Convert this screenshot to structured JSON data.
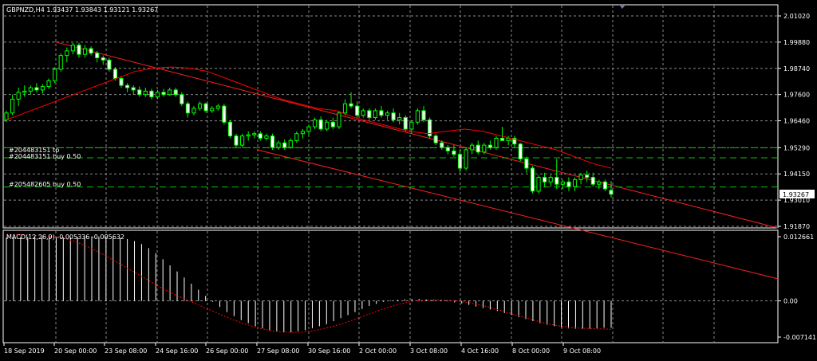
{
  "header": {
    "symbol_info": "GBPNZD,H4  1.93437 1.93843 1.93121 1.93267"
  },
  "macd": {
    "label": "MACD(12,26,9) -0.005336 -0.005632"
  },
  "orders": [
    {
      "label": "#204483151 tp"
    },
    {
      "label": "#204483151 buy 0.50"
    },
    {
      "label": "#205482605 buy 0.50"
    }
  ],
  "colors": {
    "background": "#000000",
    "grid": "#8a8a8a",
    "axis": "#ffffff",
    "candle_up_body": "#000000",
    "candle_up_border": "#00ff00",
    "candle_down_body": "#ffffff",
    "candle_down_border": "#00ff00",
    "wick": "#00ff00",
    "ma_line": "#ff0000",
    "trendline": "#ff2020",
    "order_line": "#00c800",
    "macd_hist": "#ffffff",
    "macd_signal": "#ff0000",
    "current_price_box": "#ffffff"
  },
  "chart_data": [
    {
      "type": "candlestick",
      "symbol": "GBPNZD",
      "timeframe": "H4",
      "ohlc_header": {
        "open": 1.93437,
        "high": 1.93843,
        "low": 1.93121,
        "close": 1.93267
      },
      "current_price": "1.93267",
      "ylim": [
        1.9187,
        2.0102
      ],
      "y_ticks": [
        "2.01020",
        "1.99880",
        "1.98740",
        "1.97600",
        "1.96460",
        "1.95290",
        "1.94150",
        "1.93010",
        "1.91870"
      ],
      "x_ticks": [
        "18 Sep 2019",
        "20 Sep 00:00",
        "23 Sep 08:00",
        "24 Sep 16:00",
        "26 Sep 00:00",
        "27 Sep 08:00",
        "30 Sep 16:00",
        "2 Oct 00:00",
        "3 Oct 08:00",
        "4 Oct 16:00",
        "8 Oct 00:00",
        "9 Oct 08:00"
      ],
      "candles": [
        [
          1.965,
          1.969,
          1.964,
          1.968
        ],
        [
          1.968,
          1.976,
          1.967,
          1.974
        ],
        [
          1.974,
          1.979,
          1.971,
          1.977
        ],
        [
          1.977,
          1.98,
          1.975,
          1.9775
        ],
        [
          1.9775,
          1.98,
          1.976,
          1.979
        ],
        [
          1.979,
          1.981,
          1.977,
          1.978
        ],
        [
          1.978,
          1.9805,
          1.9765,
          1.9795
        ],
        [
          1.9795,
          1.983,
          1.9785,
          1.982
        ],
        [
          1.982,
          1.988,
          1.981,
          1.987
        ],
        [
          1.987,
          1.994,
          1.986,
          1.993
        ],
        [
          1.993,
          1.9965,
          1.99,
          1.995
        ],
        [
          1.995,
          1.9985,
          1.9935,
          1.9975
        ],
        [
          1.9975,
          1.9985,
          1.992,
          1.9935
        ],
        [
          1.9935,
          1.9975,
          1.992,
          1.996
        ],
        [
          1.996,
          1.997,
          1.993,
          1.994
        ],
        [
          1.994,
          1.995,
          1.99,
          1.992
        ],
        [
          1.992,
          1.993,
          1.989,
          1.991
        ],
        [
          1.991,
          1.992,
          1.986,
          1.987
        ],
        [
          1.987,
          1.988,
          1.982,
          1.983
        ],
        [
          1.983,
          1.984,
          1.979,
          1.98
        ],
        [
          1.98,
          1.981,
          1.977,
          1.979
        ],
        [
          1.979,
          1.98,
          1.976,
          1.978
        ],
        [
          1.978,
          1.9795,
          1.975,
          1.976
        ],
        [
          1.976,
          1.979,
          1.975,
          1.9775
        ],
        [
          1.9775,
          1.9785,
          1.974,
          1.975
        ],
        [
          1.975,
          1.978,
          1.974,
          1.977
        ],
        [
          1.977,
          1.9785,
          1.975,
          1.976
        ],
        [
          1.976,
          1.979,
          1.9755,
          1.978
        ],
        [
          1.978,
          1.979,
          1.975,
          1.976
        ],
        [
          1.976,
          1.977,
          1.971,
          1.972
        ],
        [
          1.972,
          1.973,
          1.966,
          1.968
        ],
        [
          1.968,
          1.971,
          1.967,
          1.97
        ],
        [
          1.97,
          1.973,
          1.969,
          1.972
        ],
        [
          1.972,
          1.9725,
          1.968,
          1.969
        ],
        [
          1.969,
          1.971,
          1.968,
          1.97
        ],
        [
          1.97,
          1.972,
          1.969,
          1.971
        ],
        [
          1.971,
          1.972,
          1.963,
          1.964
        ],
        [
          1.964,
          1.965,
          1.957,
          1.958
        ],
        [
          1.958,
          1.959,
          1.953,
          1.954
        ],
        [
          1.954,
          1.959,
          1.953,
          1.958
        ],
        [
          1.958,
          1.96,
          1.956,
          1.9585
        ],
        [
          1.9585,
          1.96,
          1.957,
          1.959
        ],
        [
          1.959,
          1.96,
          1.956,
          1.957
        ],
        [
          1.957,
          1.959,
          1.956,
          1.958
        ],
        [
          1.958,
          1.959,
          1.952,
          1.953
        ],
        [
          1.953,
          1.956,
          1.952,
          1.955
        ],
        [
          1.955,
          1.9565,
          1.952,
          1.953
        ],
        [
          1.953,
          1.957,
          1.9525,
          1.956
        ],
        [
          1.956,
          1.96,
          1.955,
          1.959
        ],
        [
          1.959,
          1.961,
          1.957,
          1.96
        ],
        [
          1.96,
          1.963,
          1.958,
          1.962
        ],
        [
          1.962,
          1.966,
          1.961,
          1.965
        ],
        [
          1.965,
          1.9665,
          1.96,
          1.961
        ],
        [
          1.961,
          1.965,
          1.96,
          1.964
        ],
        [
          1.964,
          1.966,
          1.961,
          1.962
        ],
        [
          1.962,
          1.969,
          1.961,
          1.968
        ],
        [
          1.968,
          1.974,
          1.967,
          1.972
        ],
        [
          1.972,
          1.977,
          1.97,
          1.971
        ],
        [
          1.971,
          1.973,
          1.966,
          1.967
        ],
        [
          1.967,
          1.97,
          1.966,
          1.969
        ],
        [
          1.969,
          1.97,
          1.965,
          1.966
        ],
        [
          1.966,
          1.97,
          1.965,
          1.969
        ],
        [
          1.969,
          1.971,
          1.966,
          1.967
        ],
        [
          1.967,
          1.969,
          1.965,
          1.968
        ],
        [
          1.968,
          1.97,
          1.964,
          1.965
        ],
        [
          1.965,
          1.968,
          1.963,
          1.966
        ],
        [
          1.966,
          1.967,
          1.96,
          1.961
        ],
        [
          1.961,
          1.965,
          1.959,
          1.964
        ],
        [
          1.964,
          1.97,
          1.963,
          1.969
        ],
        [
          1.969,
          1.971,
          1.964,
          1.965
        ],
        [
          1.965,
          1.966,
          1.957,
          1.958
        ],
        [
          1.958,
          1.959,
          1.954,
          1.955
        ],
        [
          1.955,
          1.956,
          1.952,
          1.953
        ],
        [
          1.953,
          1.954,
          1.95,
          1.9515
        ],
        [
          1.9515,
          1.954,
          1.949,
          1.95
        ],
        [
          1.95,
          1.952,
          1.942,
          1.944
        ],
        [
          1.944,
          1.953,
          1.943,
          1.952
        ],
        [
          1.952,
          1.955,
          1.95,
          1.954
        ],
        [
          1.954,
          1.956,
          1.95,
          1.951
        ],
        [
          1.951,
          1.955,
          1.95,
          1.954
        ],
        [
          1.954,
          1.956,
          1.952,
          1.953
        ],
        [
          1.953,
          1.958,
          1.952,
          1.957
        ],
        [
          1.957,
          1.962,
          1.956,
          1.956
        ],
        [
          1.956,
          1.958,
          1.954,
          1.957
        ],
        [
          1.957,
          1.958,
          1.953,
          1.9545
        ],
        [
          1.9545,
          1.955,
          1.947,
          1.948
        ],
        [
          1.948,
          1.949,
          1.942,
          1.944
        ],
        [
          1.944,
          1.945,
          1.933,
          1.934
        ],
        [
          1.934,
          1.941,
          1.933,
          1.94
        ],
        [
          1.94,
          1.942,
          1.936,
          1.938
        ],
        [
          1.938,
          1.941,
          1.936,
          1.94
        ],
        [
          1.94,
          1.948,
          1.935,
          1.937
        ],
        [
          1.937,
          1.939,
          1.935,
          1.938
        ],
        [
          1.938,
          1.94,
          1.934,
          1.936
        ],
        [
          1.936,
          1.94,
          1.934,
          1.939
        ],
        [
          1.939,
          1.942,
          1.937,
          1.941
        ],
        [
          1.941,
          1.943,
          1.938,
          1.94
        ],
        [
          1.94,
          1.942,
          1.936,
          1.937
        ],
        [
          1.937,
          1.939,
          1.935,
          1.938
        ],
        [
          1.938,
          1.939,
          1.934,
          1.935
        ],
        [
          1.93437,
          1.93843,
          1.93121,
          1.93267
        ]
      ],
      "moving_average": [
        1.965,
        1.968,
        1.971,
        1.974,
        1.977,
        1.98,
        1.983,
        1.986,
        1.9875,
        1.988,
        1.9875,
        1.986,
        1.983,
        1.98,
        1.977,
        1.974,
        1.972,
        1.97,
        1.969,
        1.966,
        1.964,
        1.962,
        1.96,
        1.959,
        1.96,
        1.961,
        1.96,
        1.958,
        1.956,
        1.954,
        1.952,
        1.949,
        1.946,
        1.944
      ],
      "trendlines": [
        {
          "from": [
            "20 Sep 00:00",
            1.999
          ],
          "to": [
            "9 Oct 08:00",
            1.942
          ]
        },
        {
          "from": [
            "27 Sep 08:00",
            1.952
          ],
          "to": [
            "9 Oct 08:00",
            1.919
          ]
        }
      ],
      "order_levels": [
        {
          "label": "#204483151 tp",
          "price": 1.9529
        },
        {
          "label": "#204483151 buy 0.50",
          "price": 1.9485
        },
        {
          "label": "#205482605 buy 0.50",
          "price": 1.9358
        }
      ]
    },
    {
      "type": "bar",
      "title": "MACD(12,26,9) -0.005336 -0.005632",
      "y_ticks": [
        "0.012661",
        "0.00",
        "-0.007141"
      ],
      "ylim": [
        -0.007141,
        0.012661
      ],
      "histogram": [
        0.0125,
        0.0126,
        0.0126,
        0.0126,
        0.0126,
        0.0126,
        0.0126,
        0.0125,
        0.0125,
        0.0126,
        0.0126,
        0.0127,
        0.0127,
        0.0127,
        0.0126,
        0.0126,
        0.0124,
        0.0122,
        0.0118,
        0.0112,
        0.0104,
        0.0094,
        0.0082,
        0.007,
        0.0058,
        0.0046,
        0.0034,
        0.0022,
        0.001,
        -0.0002,
        -0.0012,
        -0.0022,
        -0.003,
        -0.0038,
        -0.0044,
        -0.005,
        -0.0054,
        -0.0058,
        -0.006,
        -0.0062,
        -0.0062,
        -0.006,
        -0.0058,
        -0.0054,
        -0.005,
        -0.0046,
        -0.004,
        -0.0034,
        -0.0028,
        -0.0022,
        -0.0016,
        -0.001,
        -0.0006,
        -0.0002,
        0.0001,
        0.0002,
        0.0003,
        0.0004,
        0.0004,
        0.0003,
        0.0002,
        0.0001,
        -0.0001,
        -0.0003,
        -0.0005,
        -0.0008,
        -0.0011,
        -0.0014,
        -0.0017,
        -0.002,
        -0.0024,
        -0.0028,
        -0.0032,
        -0.0036,
        -0.004,
        -0.0044,
        -0.0047,
        -0.005,
        -0.0052,
        -0.0054,
        -0.0055,
        -0.0055,
        -0.0055,
        -0.0054,
        -0.0053,
        -0.0053
      ],
      "signal": [
        0.013,
        0.013,
        0.0129,
        0.0128,
        0.0124,
        0.0116,
        0.0104,
        0.009,
        0.0074,
        0.0058,
        0.0042,
        0.0026,
        0.0012,
        0.0,
        -0.0012,
        -0.0024,
        -0.0036,
        -0.0046,
        -0.0054,
        -0.006,
        -0.0062,
        -0.0062,
        -0.0058,
        -0.0052,
        -0.0044,
        -0.0034,
        -0.0024,
        -0.0014,
        -0.0006,
        0.0,
        0.0002,
        0.0002,
        0.0,
        -0.0004,
        -0.001,
        -0.0018,
        -0.0026,
        -0.0034,
        -0.0042,
        -0.0048,
        -0.0052,
        -0.0054,
        -0.0055,
        -0.0056
      ]
    }
  ]
}
